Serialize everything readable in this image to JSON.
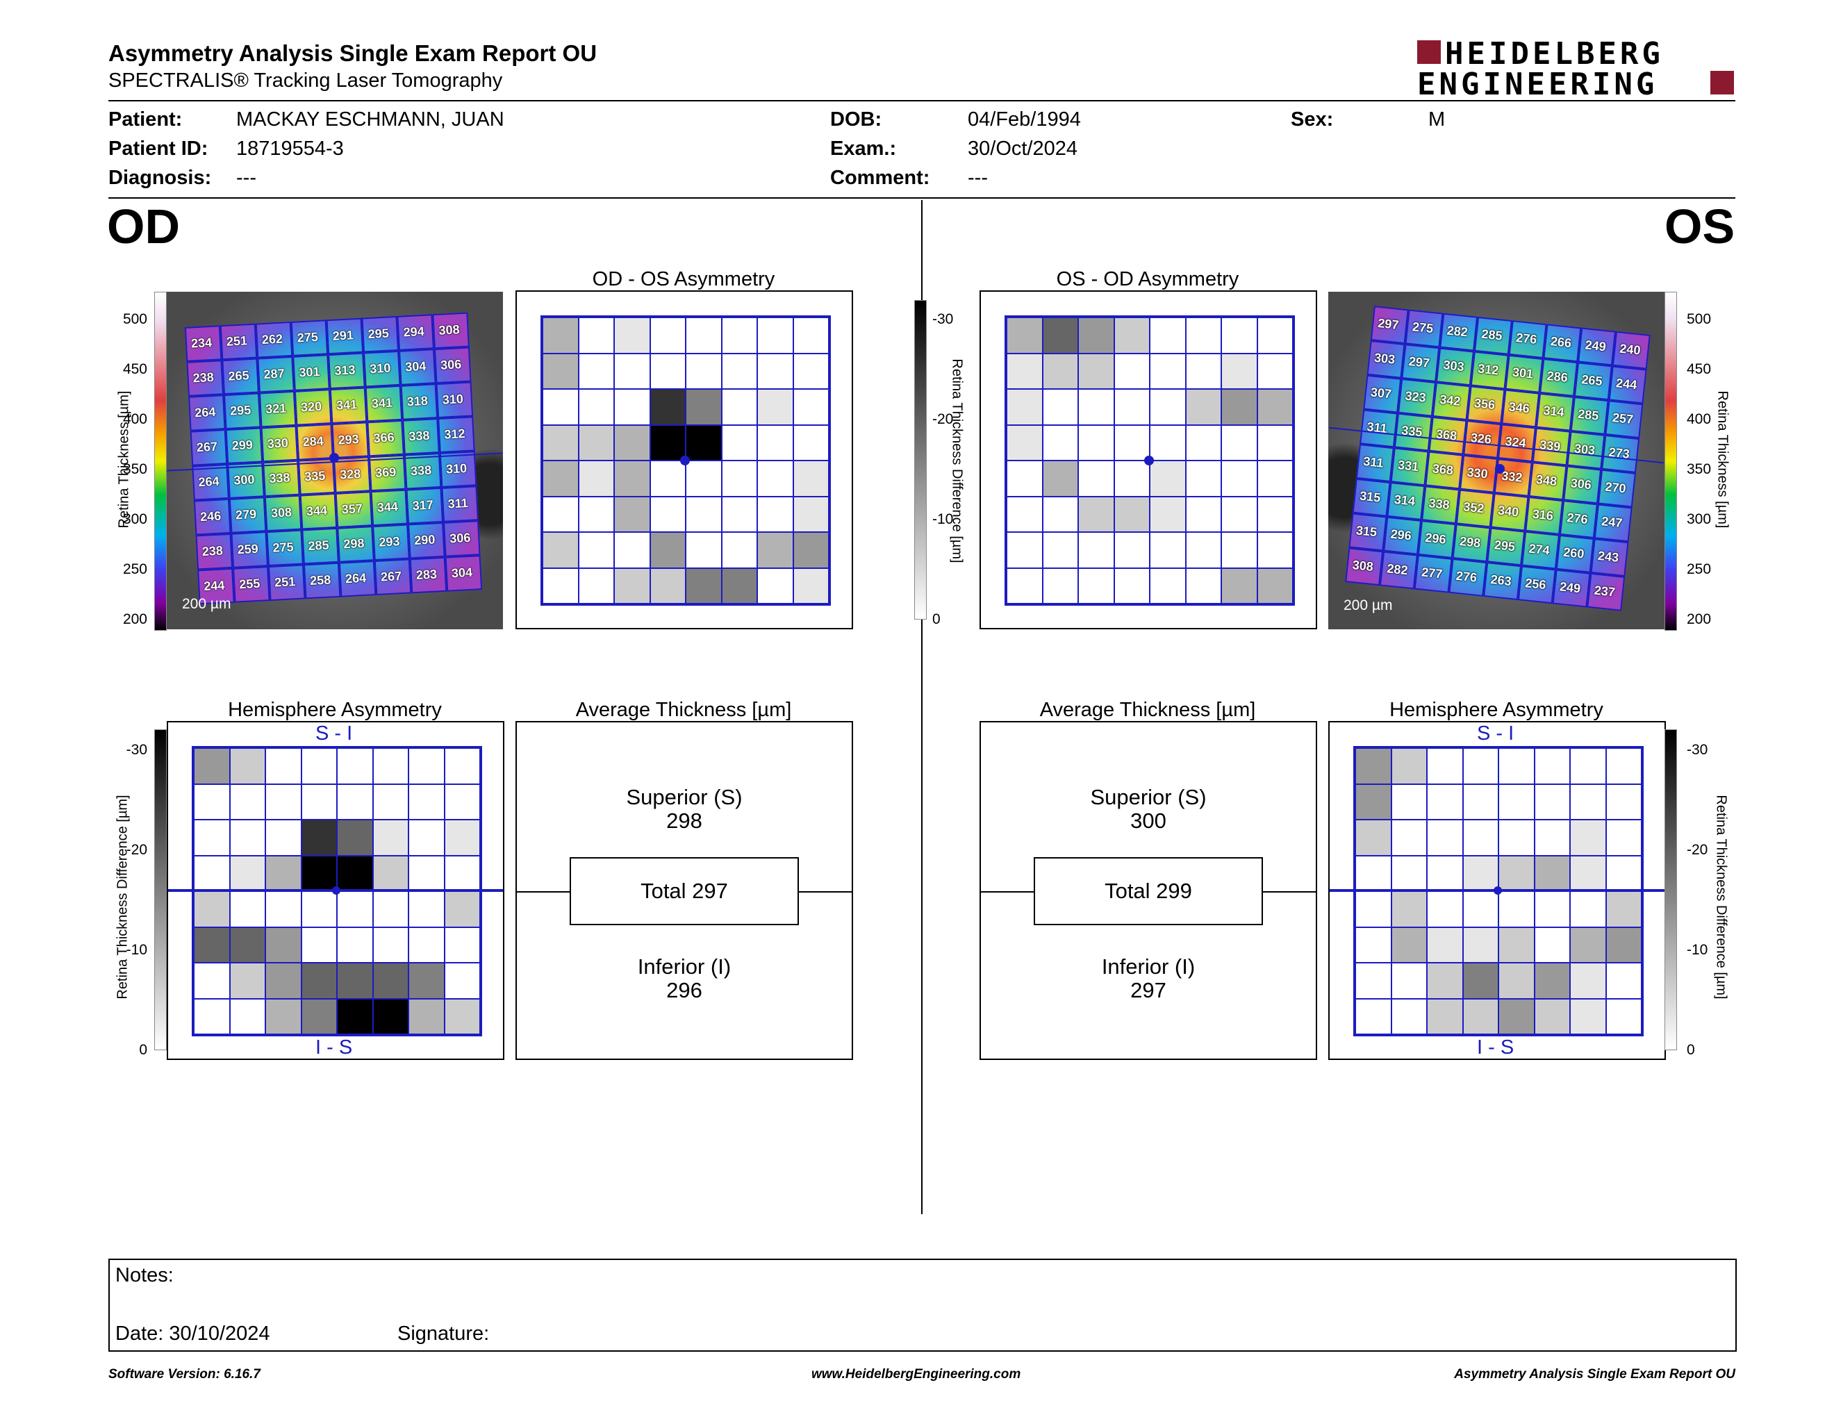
{
  "report": {
    "title": "Asymmetry Analysis Single Exam Report OU",
    "subtitle": "SPECTRALIS® Tracking Laser Tomography",
    "brand_line1": "HEIDELBERG",
    "brand_line2": "ENGINEERING",
    "brand_color": "#8b1a2e"
  },
  "patient": {
    "patient_label": "Patient:",
    "patient_value": "MACKAY ESCHMANN, JUAN",
    "id_label": "Patient ID:",
    "id_value": "18719554-3",
    "diag_label": "Diagnosis:",
    "diag_value": "---",
    "dob_label": "DOB:",
    "dob_value": "04/Feb/1994",
    "exam_label": "Exam.:",
    "exam_value": "30/Oct/2024",
    "comment_label": "Comment:",
    "comment_value": "---",
    "sex_label": "Sex:",
    "sex_value": "M"
  },
  "od": {
    "eye_label": "OD",
    "asym_title": "OD - OS Asymmetry",
    "hemi_title": "Hemisphere Asymmetry",
    "avg_title": "Average Thickness [µm]",
    "superior_label": "Superior (S)",
    "superior_value": "298",
    "total_label": "Total 297",
    "inferior_label": "Inferior (I)",
    "inferior_value": "296",
    "si_label": "S - I",
    "is_label": "I - S",
    "scale_label": "200 µm",
    "thickness_grid": [
      [
        234,
        251,
        262,
        275,
        291,
        295,
        294,
        308
      ],
      [
        238,
        265,
        287,
        301,
        313,
        310,
        304,
        306
      ],
      [
        264,
        295,
        321,
        320,
        341,
        341,
        318,
        310
      ],
      [
        267,
        299,
        330,
        284,
        293,
        366,
        338,
        312
      ],
      [
        264,
        300,
        338,
        335,
        328,
        369,
        338,
        310
      ],
      [
        246,
        279,
        308,
        344,
        357,
        344,
        317,
        311
      ],
      [
        238,
        259,
        275,
        285,
        298,
        293,
        290,
        306
      ],
      [
        244,
        255,
        251,
        258,
        264,
        267,
        283,
        304
      ]
    ],
    "asym_grid": [
      [
        3,
        0,
        1,
        0,
        0,
        0,
        0,
        0
      ],
      [
        3,
        0,
        0,
        0,
        0,
        0,
        0,
        0
      ],
      [
        0,
        0,
        0,
        8,
        5,
        0,
        1,
        0
      ],
      [
        2,
        2,
        3,
        10,
        10,
        0,
        0,
        0
      ],
      [
        3,
        1,
        3,
        0,
        0,
        0,
        0,
        1
      ],
      [
        0,
        0,
        3,
        0,
        0,
        0,
        0,
        1
      ],
      [
        2,
        0,
        0,
        4,
        0,
        0,
        3,
        4
      ],
      [
        0,
        0,
        2,
        2,
        5,
        5,
        0,
        1
      ]
    ],
    "hemi_grid": [
      [
        4,
        2,
        0,
        0,
        0,
        0,
        0,
        0
      ],
      [
        0,
        0,
        0,
        0,
        0,
        0,
        0,
        0
      ],
      [
        0,
        0,
        0,
        8,
        6,
        1,
        0,
        1
      ],
      [
        0,
        1,
        3,
        10,
        10,
        2,
        0,
        0
      ],
      [
        2,
        0,
        0,
        0,
        0,
        0,
        0,
        2
      ],
      [
        6,
        6,
        4,
        0,
        0,
        0,
        0,
        0
      ],
      [
        0,
        2,
        4,
        6,
        6,
        6,
        5,
        0
      ],
      [
        0,
        0,
        3,
        5,
        10,
        10,
        3,
        2
      ]
    ]
  },
  "os": {
    "eye_label": "OS",
    "asym_title": "OS - OD Asymmetry",
    "hemi_title": "Hemisphere Asymmetry",
    "avg_title": "Average Thickness [µm]",
    "superior_label": "Superior (S)",
    "superior_value": "300",
    "total_label": "Total 299",
    "inferior_label": "Inferior (I)",
    "inferior_value": "297",
    "si_label": "S - I",
    "is_label": "I - S",
    "scale_label": "200 µm",
    "thickness_grid": [
      [
        297,
        275,
        282,
        285,
        276,
        266,
        249,
        240
      ],
      [
        303,
        297,
        303,
        312,
        301,
        286,
        265,
        244
      ],
      [
        307,
        323,
        342,
        356,
        346,
        314,
        285,
        257
      ],
      [
        311,
        335,
        368,
        326,
        324,
        339,
        303,
        273
      ],
      [
        311,
        331,
        368,
        330,
        332,
        348,
        306,
        270
      ],
      [
        315,
        314,
        338,
        352,
        340,
        316,
        276,
        247
      ],
      [
        315,
        296,
        296,
        298,
        295,
        274,
        260,
        243
      ],
      [
        308,
        282,
        277,
        276,
        263,
        256,
        249,
        237
      ]
    ],
    "asym_grid": [
      [
        3,
        6,
        4,
        2,
        0,
        0,
        0,
        0
      ],
      [
        1,
        2,
        2,
        0,
        0,
        0,
        1,
        0
      ],
      [
        1,
        0,
        0,
        0,
        0,
        2,
        4,
        3
      ],
      [
        1,
        0,
        0,
        0,
        0,
        0,
        0,
        0
      ],
      [
        0,
        3,
        0,
        0,
        1,
        0,
        0,
        0
      ],
      [
        0,
        0,
        2,
        2,
        1,
        0,
        0,
        0
      ],
      [
        0,
        0,
        0,
        0,
        0,
        0,
        0,
        0
      ],
      [
        0,
        0,
        0,
        0,
        0,
        0,
        3,
        3
      ]
    ],
    "hemi_grid": [
      [
        4,
        2,
        0,
        0,
        0,
        0,
        0,
        0
      ],
      [
        4,
        0,
        0,
        0,
        0,
        0,
        0,
        0
      ],
      [
        2,
        0,
        0,
        0,
        0,
        0,
        1,
        0
      ],
      [
        0,
        0,
        0,
        1,
        2,
        3,
        1,
        0
      ],
      [
        0,
        2,
        0,
        0,
        0,
        0,
        0,
        2
      ],
      [
        0,
        3,
        1,
        1,
        2,
        0,
        3,
        4
      ],
      [
        0,
        0,
        2,
        5,
        2,
        4,
        1,
        0
      ],
      [
        0,
        0,
        2,
        2,
        4,
        2,
        1,
        0
      ]
    ]
  },
  "thickness_scale": {
    "label": "Retina  Thickness [µm]",
    "ticks": [
      "500",
      "450",
      "400",
      "350",
      "300",
      "250",
      "200"
    ]
  },
  "diff_scale": {
    "label": "Retina Thickness Difference [µm]",
    "ticks": [
      "-30",
      "-20",
      "-10",
      "0"
    ]
  },
  "notes": {
    "notes_label": "Notes:",
    "date_label": "Date: 30/10/2024",
    "signature_label": "Signature:"
  },
  "footer": {
    "software": "Software Version: 6.16.7",
    "website": "www.HeidelbergEngineering.com",
    "report": "Asymmetry Analysis Single Exam Report OU"
  }
}
